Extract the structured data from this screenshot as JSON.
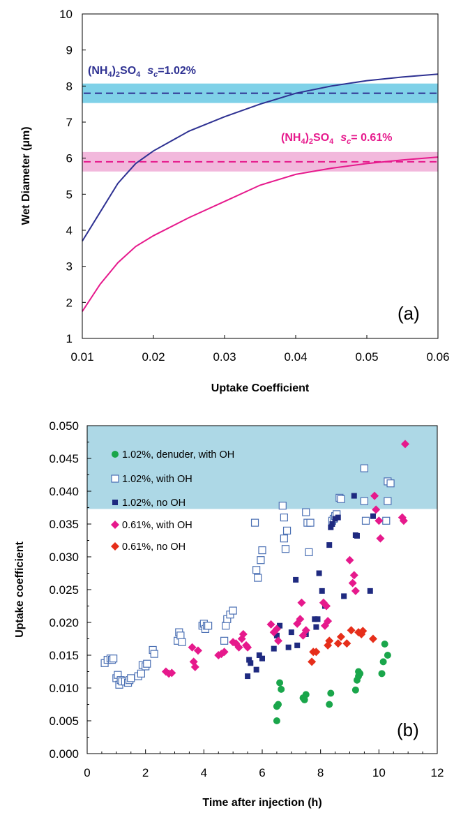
{
  "chart_data": [
    {
      "type": "line",
      "panel_label": "(a)",
      "xlabel": "Uptake Coefficient",
      "ylabel": "Wet Diameter (μm)",
      "xlim": [
        0.01,
        0.06
      ],
      "ylim": [
        1,
        10
      ],
      "xticks": [
        "0.01",
        "0.02",
        "0.03",
        "0.04",
        "0.05",
        "0.06"
      ],
      "yticks": [
        "1",
        "2",
        "3",
        "4",
        "5",
        "6",
        "7",
        "8",
        "9",
        "10"
      ],
      "colors": {
        "navy": "#2e3192",
        "magenta": "#e6198c",
        "cyan_band": "#7fd1e8",
        "pink_band": "#f2b8dc"
      },
      "series": [
        {
          "x": [
            0.01,
            0.0125,
            0.015,
            0.0175,
            0.02,
            0.025,
            0.03,
            0.035,
            0.04,
            0.045,
            0.05,
            0.055,
            0.06
          ],
          "y": [
            3.7,
            4.5,
            5.3,
            5.85,
            6.2,
            6.75,
            7.15,
            7.5,
            7.8,
            8.0,
            8.15,
            8.25,
            8.33
          ],
          "color": "#2e3192"
        },
        {
          "x": [
            0.01,
            0.0125,
            0.015,
            0.0175,
            0.02,
            0.025,
            0.03,
            0.035,
            0.04,
            0.045,
            0.05,
            0.055,
            0.06
          ],
          "y": [
            1.75,
            2.5,
            3.1,
            3.55,
            3.85,
            4.35,
            4.8,
            5.25,
            5.55,
            5.72,
            5.85,
            5.95,
            6.03
          ],
          "color": "#e6198c"
        }
      ],
      "bands": [
        {
          "value": 7.8,
          "low": 7.53,
          "high": 8.07,
          "color": "#7fd1e8",
          "line_color": "#2e3192"
        },
        {
          "value": 5.9,
          "low": 5.63,
          "high": 6.17,
          "color": "#f2b8dc",
          "line_color": "#e6198c"
        }
      ],
      "annotations": [
        {
          "formula": "(NH",
          "sub1": "4",
          "mid": ")",
          "sub2": "2",
          "tail": "SO",
          "sub3": "4",
          "s": "s",
          "c": "c",
          "value": "=1.02%",
          "color": "#2e3192"
        },
        {
          "formula": "(NH",
          "sub1": "4",
          "mid": ")",
          "sub2": "2",
          "tail": "SO",
          "sub3": "4",
          "s": "s",
          "c": "c",
          "value": "= 0.61%",
          "color": "#e6198c"
        }
      ]
    },
    {
      "type": "scatter",
      "panel_label": "(b)",
      "xlabel": "Time after injection (h)",
      "ylabel": "Uptake coefficient",
      "xlim": [
        0,
        12
      ],
      "ylim": [
        0,
        0.05
      ],
      "xticks": [
        "0",
        "2",
        "4",
        "6",
        "8",
        "10",
        "12"
      ],
      "yticks": [
        "0.000",
        "0.005",
        "0.010",
        "0.015",
        "0.020",
        "0.025",
        "0.030",
        "0.035",
        "0.040",
        "0.045",
        "0.050"
      ],
      "band": {
        "low": 0.0373,
        "high": 0.05,
        "color": "#add8e6"
      },
      "legend_position": "top-left",
      "series": [
        {
          "name": "1.02%, denuder, with OH",
          "marker": "circle",
          "color": "#1aa64b",
          "points": [
            [
              6.5,
              0.005
            ],
            [
              6.5,
              0.0072
            ],
            [
              6.55,
              0.0075
            ],
            [
              6.6,
              0.0108
            ],
            [
              6.65,
              0.0098
            ],
            [
              7.4,
              0.0085
            ],
            [
              7.45,
              0.0082
            ],
            [
              7.5,
              0.009
            ],
            [
              8.3,
              0.0075
            ],
            [
              8.35,
              0.0092
            ],
            [
              9.2,
              0.0097
            ],
            [
              9.25,
              0.0112
            ],
            [
              9.3,
              0.0118
            ],
            [
              9.3,
              0.0125
            ],
            [
              9.35,
              0.0122
            ],
            [
              10.1,
              0.0122
            ],
            [
              10.15,
              0.014
            ],
            [
              10.2,
              0.0167
            ],
            [
              10.3,
              0.015
            ]
          ]
        },
        {
          "name": "1.02%, with OH",
          "marker": "square-open",
          "color": "#4a6fb3",
          "points": [
            [
              0.6,
              0.0138
            ],
            [
              0.7,
              0.0143
            ],
            [
              0.8,
              0.0145
            ],
            [
              0.85,
              0.0143
            ],
            [
              0.9,
              0.0145
            ],
            [
              1.0,
              0.0115
            ],
            [
              1.05,
              0.012
            ],
            [
              1.1,
              0.0105
            ],
            [
              1.15,
              0.0112
            ],
            [
              1.2,
              0.011
            ],
            [
              1.3,
              0.011
            ],
            [
              1.4,
              0.0108
            ],
            [
              1.45,
              0.0112
            ],
            [
              1.5,
              0.0115
            ],
            [
              1.75,
              0.0118
            ],
            [
              1.85,
              0.0122
            ],
            [
              1.9,
              0.0135
            ],
            [
              2.0,
              0.0133
            ],
            [
              2.05,
              0.0137
            ],
            [
              2.25,
              0.0158
            ],
            [
              2.3,
              0.0152
            ],
            [
              3.1,
              0.0172
            ],
            [
              3.15,
              0.0185
            ],
            [
              3.2,
              0.018
            ],
            [
              3.25,
              0.017
            ],
            [
              3.95,
              0.0195
            ],
            [
              4.0,
              0.0198
            ],
            [
              4.05,
              0.019
            ],
            [
              4.1,
              0.0195
            ],
            [
              4.15,
              0.0195
            ],
            [
              4.7,
              0.0172
            ],
            [
              4.75,
              0.0195
            ],
            [
              4.8,
              0.0205
            ],
            [
              4.9,
              0.0212
            ],
            [
              5.0,
              0.0218
            ],
            [
              5.75,
              0.0352
            ],
            [
              5.8,
              0.028
            ],
            [
              5.85,
              0.0268
            ],
            [
              5.95,
              0.0295
            ],
            [
              6.0,
              0.031
            ],
            [
              6.7,
              0.0378
            ],
            [
              6.75,
              0.036
            ],
            [
              6.8,
              0.0312
            ],
            [
              6.85,
              0.034
            ],
            [
              6.75,
              0.0328
            ],
            [
              7.5,
              0.0368
            ],
            [
              7.55,
              0.0352
            ],
            [
              7.6,
              0.0307
            ],
            [
              7.65,
              0.0352
            ],
            [
              8.4,
              0.0355
            ],
            [
              8.45,
              0.0358
            ],
            [
              8.5,
              0.0362
            ],
            [
              8.55,
              0.0365
            ],
            [
              8.65,
              0.039
            ],
            [
              8.7,
              0.0388
            ],
            [
              9.5,
              0.0435
            ],
            [
              9.5,
              0.0385
            ],
            [
              9.55,
              0.0355
            ],
            [
              10.3,
              0.0385
            ],
            [
              10.3,
              0.0415
            ],
            [
              10.4,
              0.0412
            ],
            [
              10.25,
              0.0355
            ]
          ]
        },
        {
          "name": "1.02%, no OH",
          "marker": "square",
          "color": "#1f2a80",
          "points": [
            [
              5.5,
              0.0118
            ],
            [
              5.55,
              0.0143
            ],
            [
              5.6,
              0.0138
            ],
            [
              5.8,
              0.0128
            ],
            [
              5.9,
              0.015
            ],
            [
              6.0,
              0.0145
            ],
            [
              6.4,
              0.016
            ],
            [
              6.5,
              0.018
            ],
            [
              6.6,
              0.0195
            ],
            [
              6.9,
              0.0162
            ],
            [
              7.0,
              0.0185
            ],
            [
              7.15,
              0.0265
            ],
            [
              7.2,
              0.0165
            ],
            [
              7.5,
              0.0182
            ],
            [
              7.8,
              0.0205
            ],
            [
              7.85,
              0.0193
            ],
            [
              7.9,
              0.0205
            ],
            [
              7.95,
              0.0275
            ],
            [
              8.05,
              0.0248
            ],
            [
              8.15,
              0.0225
            ],
            [
              8.3,
              0.0318
            ],
            [
              8.35,
              0.0345
            ],
            [
              8.4,
              0.035
            ],
            [
              8.5,
              0.0358
            ],
            [
              8.6,
              0.036
            ],
            [
              8.8,
              0.024
            ],
            [
              9.15,
              0.0393
            ],
            [
              9.2,
              0.0333
            ],
            [
              9.25,
              0.0332
            ],
            [
              9.7,
              0.0248
            ],
            [
              9.8,
              0.0362
            ]
          ]
        },
        {
          "name": "0.61%, with OH",
          "marker": "diamond",
          "color": "#e6198c",
          "points": [
            [
              2.7,
              0.0125
            ],
            [
              2.8,
              0.0122
            ],
            [
              2.9,
              0.0123
            ],
            [
              3.6,
              0.0162
            ],
            [
              3.65,
              0.014
            ],
            [
              3.7,
              0.0132
            ],
            [
              3.8,
              0.0157
            ],
            [
              4.5,
              0.015
            ],
            [
              4.6,
              0.0152
            ],
            [
              4.7,
              0.0155
            ],
            [
              5.0,
              0.017
            ],
            [
              5.1,
              0.0168
            ],
            [
              5.2,
              0.0162
            ],
            [
              5.3,
              0.0175
            ],
            [
              5.35,
              0.0182
            ],
            [
              5.45,
              0.0165
            ],
            [
              5.5,
              0.0162
            ],
            [
              6.3,
              0.0197
            ],
            [
              6.4,
              0.0185
            ],
            [
              6.5,
              0.019
            ],
            [
              6.55,
              0.0172
            ],
            [
              7.2,
              0.0198
            ],
            [
              7.3,
              0.0205
            ],
            [
              7.35,
              0.023
            ],
            [
              7.4,
              0.018
            ],
            [
              7.5,
              0.0188
            ],
            [
              8.1,
              0.023
            ],
            [
              8.15,
              0.0195
            ],
            [
              8.2,
              0.0225
            ],
            [
              8.25,
              0.0202
            ],
            [
              9.0,
              0.0295
            ],
            [
              9.1,
              0.026
            ],
            [
              9.15,
              0.0272
            ],
            [
              9.2,
              0.0248
            ],
            [
              9.85,
              0.0393
            ],
            [
              9.9,
              0.0372
            ],
            [
              10.0,
              0.0355
            ],
            [
              10.05,
              0.0328
            ],
            [
              10.8,
              0.036
            ],
            [
              10.85,
              0.0355
            ],
            [
              10.9,
              0.0472
            ]
          ]
        },
        {
          "name": "0.61%, no OH",
          "marker": "diamond",
          "color": "#e62e1a",
          "points": [
            [
              7.7,
              0.014
            ],
            [
              7.75,
              0.0155
            ],
            [
              7.85,
              0.0155
            ],
            [
              8.25,
              0.0165
            ],
            [
              8.3,
              0.0172
            ],
            [
              8.6,
              0.0168
            ],
            [
              8.7,
              0.0178
            ],
            [
              8.9,
              0.0168
            ],
            [
              9.05,
              0.0188
            ],
            [
              9.3,
              0.0185
            ],
            [
              9.4,
              0.0182
            ],
            [
              9.45,
              0.0187
            ],
            [
              9.8,
              0.0175
            ]
          ]
        }
      ]
    }
  ]
}
